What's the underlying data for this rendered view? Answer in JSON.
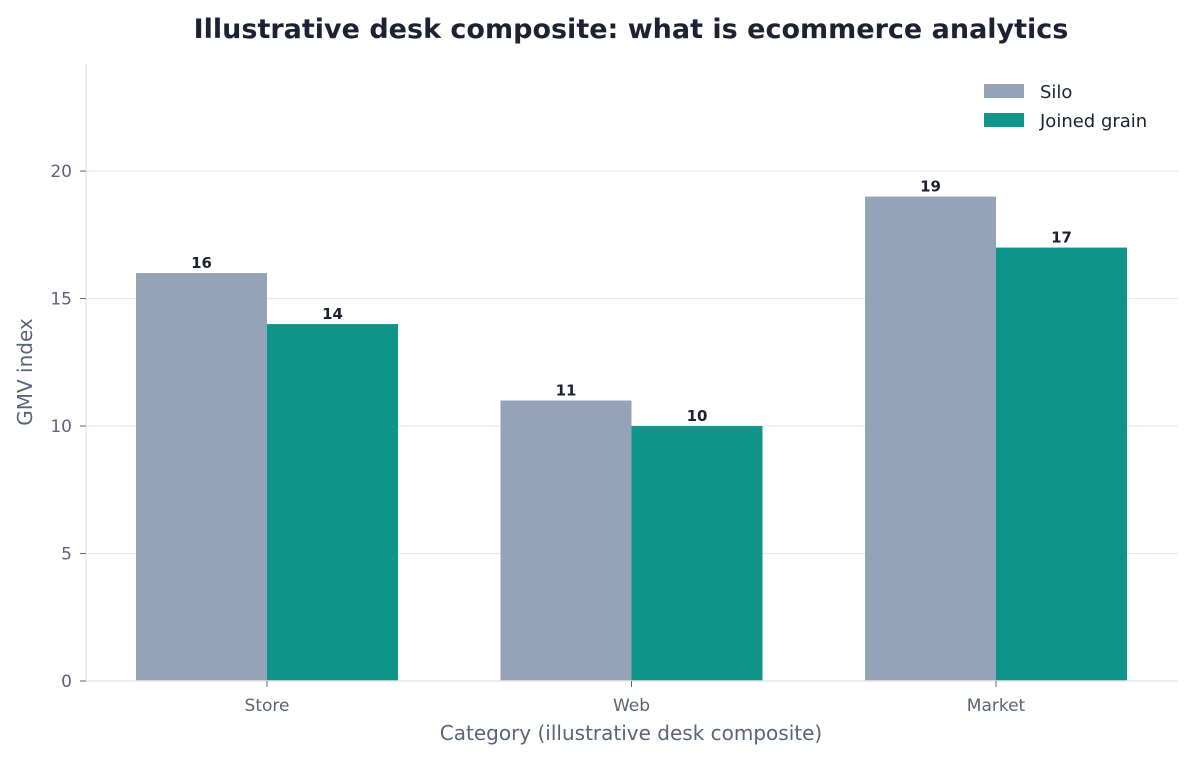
{
  "chart_data": {
    "type": "bar",
    "title": "Illustrative desk composite: what is ecommerce analytics",
    "xlabel": "Category (illustrative desk composite)",
    "ylabel": "GMV index",
    "categories": [
      "Store",
      "Web",
      "Market"
    ],
    "series": [
      {
        "name": "Silo",
        "values": [
          16,
          11,
          19
        ],
        "color": "#95a3b9"
      },
      {
        "name": "Joined grain",
        "values": [
          14,
          10,
          17
        ],
        "color": "#0e9488"
      }
    ],
    "ylim": [
      0,
      24.2
    ],
    "yticks": [
      0,
      5,
      10,
      15,
      20
    ],
    "grid": true,
    "legend": "top-right"
  }
}
